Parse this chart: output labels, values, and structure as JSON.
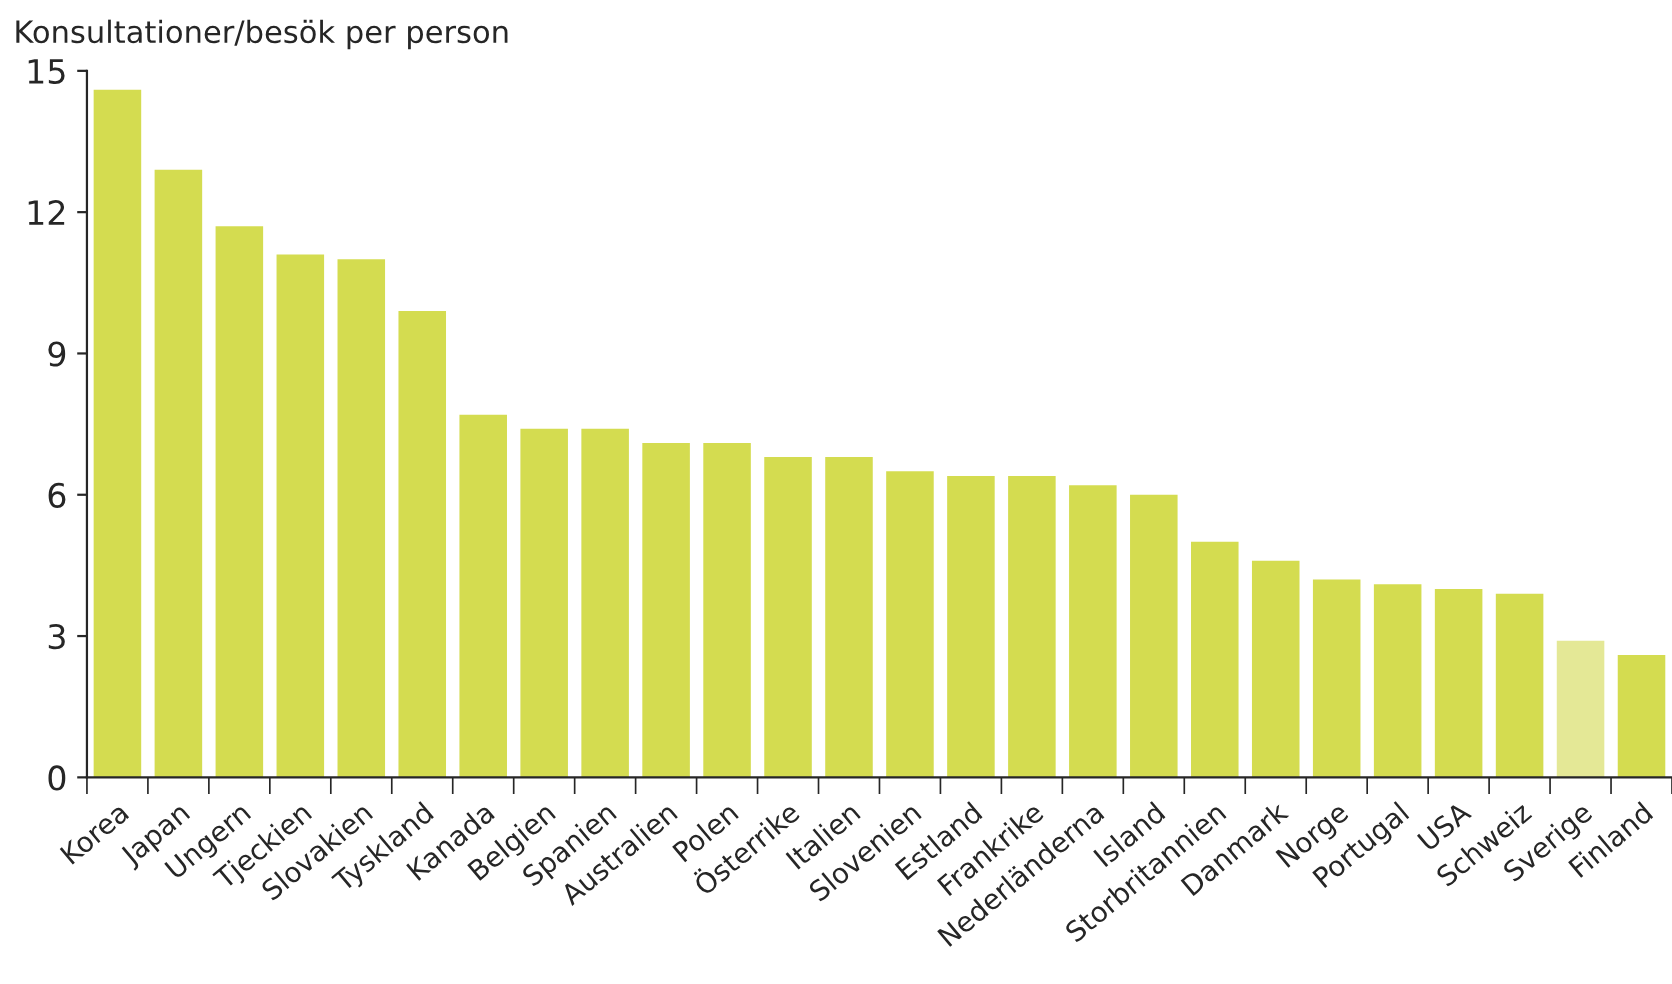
{
  "chart_data": {
    "type": "bar",
    "ylabel": "Konsultationer/besök per person",
    "categories": [
      "Korea",
      "Japan",
      "Ungern",
      "Tjeckien",
      "Slovakien",
      "Tyskland",
      "Kanada",
      "Belgien",
      "Spanien",
      "Australien",
      "Polen",
      "Österrike",
      "Italien",
      "Slovenien",
      "Estland",
      "Frankrike",
      "Nederländerna",
      "Island",
      "Storbritannien",
      "Danmark",
      "Norge",
      "Portugal",
      "USA",
      "Schweiz",
      "Sverige",
      "Finland"
    ],
    "values": [
      14.6,
      12.9,
      11.7,
      11.1,
      11.0,
      9.9,
      7.7,
      7.4,
      7.4,
      7.1,
      7.1,
      6.8,
      6.8,
      6.5,
      6.4,
      6.4,
      6.2,
      6.0,
      5.0,
      4.6,
      4.2,
      4.1,
      4.0,
      3.9,
      2.9,
      2.6
    ],
    "colors": [
      "#d4dc50",
      "#d4dc50",
      "#d4dc50",
      "#d4dc50",
      "#d4dc50",
      "#d4dc50",
      "#d4dc50",
      "#d4dc50",
      "#d4dc50",
      "#d4dc50",
      "#d4dc50",
      "#d4dc50",
      "#d4dc50",
      "#d4dc50",
      "#d4dc50",
      "#d4dc50",
      "#d4dc50",
      "#d4dc50",
      "#d4dc50",
      "#d4dc50",
      "#d4dc50",
      "#d4dc50",
      "#d4dc50",
      "#d4dc50",
      "#e4e896",
      "#d4dc50"
    ],
    "ylim": [
      0,
      15
    ],
    "yticks": [
      0,
      3,
      6,
      9,
      12,
      15
    ],
    "grid": false
  }
}
